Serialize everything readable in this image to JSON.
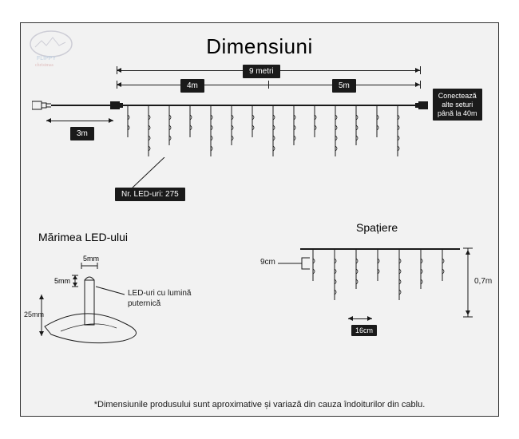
{
  "title": "Dimensiuni",
  "footnote": "*Dimensiunile produsului sunt aproximative și variază din cauza îndoiturilor din cablu.",
  "main_diagram": {
    "total_length": "9 metri",
    "segment_a": "4m",
    "segment_b": "5m",
    "lead_cable": "3m",
    "led_count_label": "Nr. LED-uri: 275",
    "connect_note": "Conectează\nalte seturi\npână la 40m",
    "strand_count": 14,
    "strand_heights": [
      40,
      64,
      50,
      40,
      64,
      50,
      40,
      64,
      50,
      40,
      64,
      50,
      40,
      64
    ]
  },
  "led_section": {
    "heading": "Mărimea LED-ului",
    "width": "5mm",
    "height": "5mm",
    "base": "25mm",
    "note": "LED-uri cu lumină\nputernică"
  },
  "spacing_section": {
    "heading": "Spațiere",
    "drop_spacing": "9cm",
    "strand_spacing": "16cm",
    "height": "0,7m",
    "strand_count": 7,
    "strand_heights": [
      40,
      64,
      50,
      40,
      64,
      50,
      40
    ]
  },
  "colors": {
    "bg": "#f2f2f2",
    "line": "#1a1a1a",
    "label_bg": "#1a1a1a",
    "label_text": "#ffffff"
  }
}
